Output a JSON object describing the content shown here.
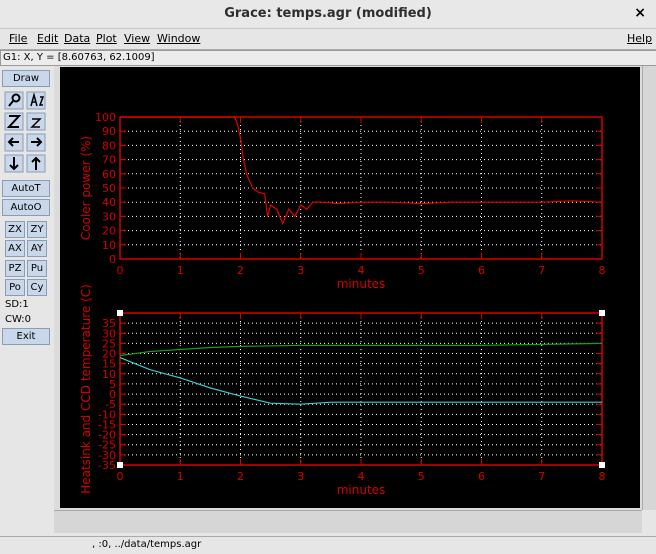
{
  "window": {
    "title": "Grace: temps.agr (modified)",
    "close": "×"
  },
  "menu": [
    "File",
    "Edit",
    "Data",
    "Plot",
    "View",
    "Window"
  ],
  "help": "Help",
  "locator": "G1: X, Y = [8.60763, 62.1009]",
  "toolbar": {
    "draw": "Draw",
    "auto_t": "AutoT",
    "auto_o": "AutoO",
    "pairs": [
      [
        "ZX",
        "ZY"
      ],
      [
        "AX",
        "AY"
      ],
      [
        "PZ",
        "Pu"
      ],
      [
        "Po",
        "Cy"
      ]
    ],
    "sd": "SD:1",
    "cw": "CW:0",
    "exit": "Exit"
  },
  "status": ", :0, ../data/temps.agr",
  "chart_data": [
    {
      "type": "line",
      "xlabel": "minutes",
      "ylabel": "Cooler power (%)",
      "xlim": [
        0,
        8
      ],
      "xticks": [
        0,
        1,
        2,
        3,
        4,
        5,
        6,
        7,
        8
      ],
      "ylim": [
        0,
        100
      ],
      "yticks": [
        0,
        10,
        20,
        30,
        40,
        50,
        60,
        70,
        80,
        90,
        100
      ],
      "grid": true,
      "axis_color": "#d40000",
      "series": [
        {
          "color": "#e00000",
          "x": [
            0,
            1.9,
            1.95,
            2.0,
            2.05,
            2.1,
            2.15,
            2.2,
            2.3,
            2.4,
            2.45,
            2.5,
            2.6,
            2.7,
            2.8,
            2.9,
            3.0,
            3.1,
            3.2,
            3.4,
            3.6,
            4,
            4.5,
            5,
            5.5,
            6,
            6.5,
            7,
            7.5,
            8
          ],
          "values": [
            100,
            100,
            95,
            85,
            70,
            60,
            55,
            50,
            47,
            46,
            30,
            38,
            35,
            25,
            35,
            30,
            38,
            35,
            40,
            40,
            39,
            40,
            40,
            39,
            40,
            40,
            40,
            40,
            41,
            40
          ]
        }
      ]
    },
    {
      "type": "line",
      "xlabel": "minutes",
      "ylabel": "Heatsink and CCD temperature (C)",
      "xlim": [
        0,
        8
      ],
      "xticks": [
        0,
        1,
        2,
        3,
        4,
        5,
        6,
        7,
        8
      ],
      "ylim": [
        -35,
        40
      ],
      "yticks": [
        -35,
        -30,
        -25,
        -20,
        -15,
        -10,
        -5,
        0,
        5,
        10,
        15,
        20,
        25,
        30,
        35
      ],
      "grid": true,
      "axis_color": "#d40000",
      "series": [
        {
          "color": "#1a9a1a",
          "x": [
            0,
            0.5,
            1,
            1.5,
            2,
            3,
            4,
            5,
            6,
            7,
            8
          ],
          "values": [
            19,
            21,
            22,
            23,
            23.5,
            24,
            24,
            24,
            24,
            24.5,
            25
          ]
        },
        {
          "color": "#40c8c8",
          "x": [
            0,
            0.25,
            0.5,
            1,
            1.5,
            2,
            2.5,
            3,
            3.5,
            4,
            5,
            6,
            7,
            8
          ],
          "values": [
            18,
            15,
            12,
            8,
            3,
            -1,
            -4.5,
            -5,
            -4,
            -4,
            -4,
            -4,
            -4,
            -4
          ]
        }
      ]
    }
  ]
}
